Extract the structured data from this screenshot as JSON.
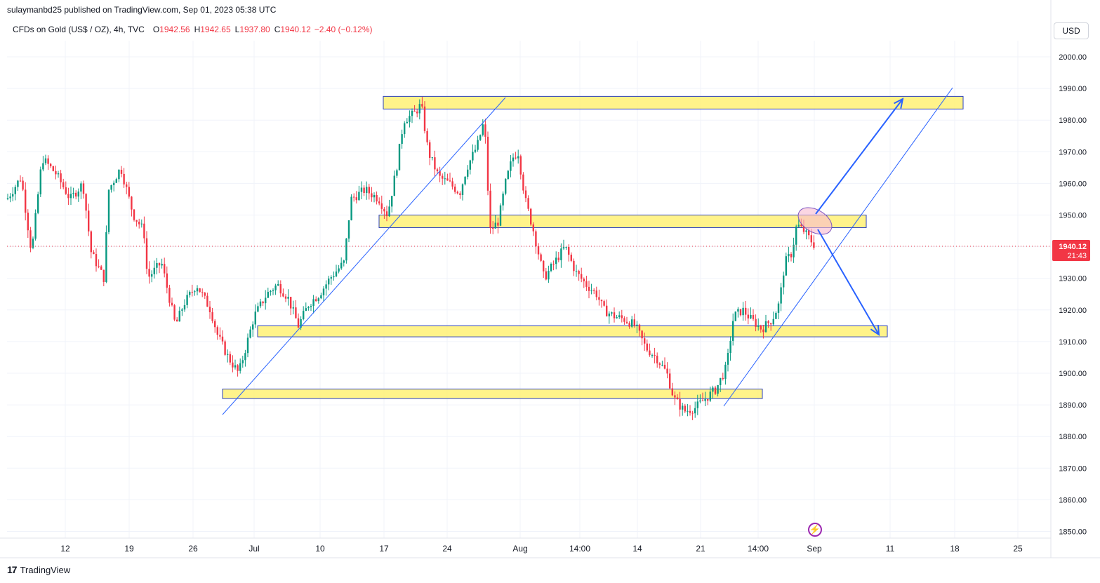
{
  "header": {
    "published_text": "sulaymanbd25 published on TradingView.com, Sep 01, 2023 05:38 UTC"
  },
  "legend": {
    "symbol": "CFDs on Gold (US$ / OZ), 4h, TVC",
    "open_label": "O",
    "open": "1942.56",
    "high_label": "H",
    "high": "1942.65",
    "low_label": "L",
    "low": "1937.80",
    "close_label": "C",
    "close": "1940.12",
    "change": "−2.40 (−0.12%)"
  },
  "toolbar": {
    "currency": "USD"
  },
  "price_tag": {
    "price": "1940.12",
    "countdown": "21:43"
  },
  "footer": {
    "brand": "TradingView"
  },
  "colors": {
    "up": "#089981",
    "down": "#f23645",
    "zone_fill": "#fff176",
    "zone_border": "#2a3fbf",
    "trendline": "#2962ff",
    "arrow": "#2962ff",
    "ellipse_fill": "#f8bbd0",
    "ellipse_border": "#7e57c2",
    "price_line": "#f23645",
    "grid": "#f0f3fa"
  },
  "chart_data": {
    "type": "candlestick",
    "ylim": [
      1845,
      2005
    ],
    "y_ticks": [
      "2000.00",
      "1990.00",
      "1980.00",
      "1970.00",
      "1960.00",
      "1950.00",
      "1940.00",
      "1930.00",
      "1920.00",
      "1910.00",
      "1900.00",
      "1890.00",
      "1880.00",
      "1870.00",
      "1860.00",
      "1850.00"
    ],
    "x_ticks": [
      "12",
      "19",
      "26",
      "Jul",
      "10",
      "17",
      "24",
      "Aug",
      "14:00",
      "14",
      "21",
      "14:00",
      "Sep",
      "11",
      "18",
      "25"
    ],
    "last_price": 1940.12,
    "price_path": [
      [
        10,
        1955
      ],
      [
        30,
        1962
      ],
      [
        45,
        1938
      ],
      [
        60,
        1968
      ],
      [
        80,
        1963
      ],
      [
        100,
        1955
      ],
      [
        118,
        1960
      ],
      [
        130,
        1938
      ],
      [
        148,
        1930
      ],
      [
        155,
        1958
      ],
      [
        172,
        1965
      ],
      [
        190,
        1950
      ],
      [
        205,
        1945
      ],
      [
        210,
        1930
      ],
      [
        230,
        1935
      ],
      [
        250,
        1915
      ],
      [
        262,
        1922
      ],
      [
        280,
        1928
      ],
      [
        300,
        1920
      ],
      [
        310,
        1912
      ],
      [
        325,
        1905
      ],
      [
        340,
        1900
      ],
      [
        350,
        1908
      ],
      [
        362,
        1918
      ],
      [
        380,
        1925
      ],
      [
        395,
        1928
      ],
      [
        410,
        1924
      ],
      [
        425,
        1915
      ],
      [
        440,
        1922
      ],
      [
        455,
        1925
      ],
      [
        470,
        1930
      ],
      [
        490,
        1935
      ],
      [
        500,
        1955
      ],
      [
        520,
        1958
      ],
      [
        540,
        1955
      ],
      [
        552,
        1950
      ],
      [
        565,
        1965
      ],
      [
        575,
        1980
      ],
      [
        590,
        1982
      ],
      [
        600,
        1985
      ],
      [
        610,
        1970
      ],
      [
        625,
        1962
      ],
      [
        640,
        1960
      ],
      [
        655,
        1957
      ],
      [
        665,
        1965
      ],
      [
        680,
        1972
      ],
      [
        690,
        1980
      ],
      [
        698,
        1945
      ],
      [
        710,
        1948
      ],
      [
        720,
        1960
      ],
      [
        730,
        1968
      ],
      [
        738,
        1970
      ],
      [
        748,
        1955
      ],
      [
        760,
        1945
      ],
      [
        775,
        1930
      ],
      [
        790,
        1935
      ],
      [
        805,
        1940
      ],
      [
        820,
        1932
      ],
      [
        835,
        1928
      ],
      [
        850,
        1925
      ],
      [
        860,
        1920
      ],
      [
        875,
        1918
      ],
      [
        890,
        1917
      ],
      [
        905,
        1915
      ],
      [
        920,
        1908
      ],
      [
        935,
        1905
      ],
      [
        950,
        1900
      ],
      [
        960,
        1892
      ],
      [
        975,
        1888
      ],
      [
        990,
        1889
      ],
      [
        1005,
        1892
      ],
      [
        1020,
        1895
      ],
      [
        1035,
        1902
      ],
      [
        1045,
        1918
      ],
      [
        1058,
        1920
      ],
      [
        1070,
        1917
      ],
      [
        1085,
        1914
      ],
      [
        1100,
        1917
      ],
      [
        1110,
        1922
      ],
      [
        1118,
        1935
      ],
      [
        1128,
        1938
      ],
      [
        1135,
        1947
      ],
      [
        1145,
        1945
      ],
      [
        1155,
        1942
      ],
      [
        1162,
        1940
      ]
    ],
    "zones": [
      {
        "from_price": 1983.5,
        "to_price": 1987.5
      },
      {
        "from_price": 1946.0,
        "to_price": 1950.0
      },
      {
        "from_price": 1911.5,
        "to_price": 1915.0
      },
      {
        "from_price": 1892.0,
        "to_price": 1895.0
      }
    ],
    "grid": true
  }
}
